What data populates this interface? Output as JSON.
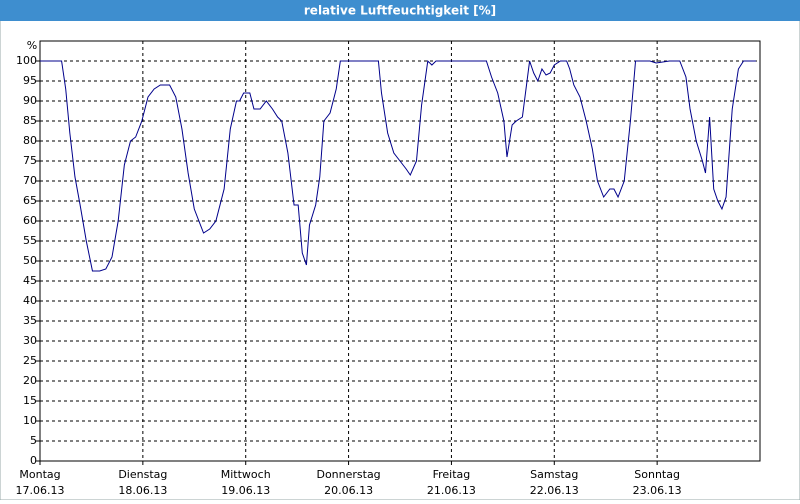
{
  "chart_data": {
    "type": "line",
    "title": "relative Luftfeuchtigkeit [%]",
    "y_label": "%",
    "xlim": [
      0,
      7
    ],
    "ylim": [
      0,
      105
    ],
    "yticks": [
      0,
      5,
      10,
      15,
      20,
      25,
      30,
      35,
      40,
      45,
      50,
      55,
      60,
      65,
      70,
      75,
      80,
      85,
      90,
      95,
      100
    ],
    "xticks": [
      {
        "value": 0,
        "label": "Montag"
      },
      {
        "value": 1,
        "label": "Dienstag"
      },
      {
        "value": 2,
        "label": "Mittwoch"
      },
      {
        "value": 3,
        "label": "Donnerstag"
      },
      {
        "value": 4,
        "label": "Freitag"
      },
      {
        "value": 5,
        "label": "Samstag"
      },
      {
        "value": 6,
        "label": "Sonntag"
      }
    ],
    "x_dates": [
      "17.06.13",
      "18.06.13",
      "19.06.13",
      "20.06.13",
      "21.06.13",
      "22.06.13",
      "23.06.13"
    ],
    "grid": true,
    "series": [
      {
        "color": "#00008b",
        "x": [
          0,
          0.21,
          0.25,
          0.29,
          0.34,
          0.39,
          0.45,
          0.51,
          0.58,
          0.64,
          0.7,
          0.76,
          0.82,
          0.88,
          0.93,
          0.99,
          1.05,
          1.11,
          1.17,
          1.26,
          1.32,
          1.38,
          1.44,
          1.5,
          1.59,
          1.65,
          1.71,
          1.79,
          1.85,
          1.91,
          1.94,
          1.98,
          2.04,
          2.08,
          2.14,
          2.2,
          2.26,
          2.31,
          2.35,
          2.41,
          2.47,
          2.51,
          2.55,
          2.59,
          2.62,
          2.68,
          2.72,
          2.76,
          2.82,
          2.88,
          2.92,
          3.29,
          3.32,
          3.38,
          3.44,
          3.5,
          3.56,
          3.6,
          3.66,
          3.71,
          3.77,
          3.81,
          3.85,
          4.34,
          4.39,
          4.45,
          4.51,
          4.54,
          4.59,
          4.63,
          4.69,
          4.76,
          4.8,
          4.84,
          4.88,
          4.92,
          4.96,
          5.0,
          5.06,
          5.12,
          5.15,
          5.19,
          5.25,
          5.31,
          5.37,
          5.42,
          5.48,
          5.54,
          5.58,
          5.62,
          5.68,
          5.74,
          5.79,
          5.93,
          5.99,
          6.12,
          6.22,
          6.28,
          6.32,
          6.38,
          6.44,
          6.47,
          6.51,
          6.55,
          6.59,
          6.63,
          6.67,
          6.73,
          6.79,
          6.84,
          6.96
        ],
        "values": [
          100,
          100,
          93,
          82,
          71,
          64,
          55,
          47.5,
          47.5,
          48,
          51,
          60,
          74,
          80,
          81,
          85,
          91,
          93,
          94,
          94,
          91,
          83,
          72,
          63,
          57,
          58,
          60,
          68,
          83,
          90,
          90,
          92,
          92,
          88,
          88,
          90,
          88,
          86,
          85,
          77,
          64,
          64,
          52,
          49,
          59,
          64,
          71,
          85,
          87,
          93,
          100,
          100,
          92,
          82,
          77,
          75,
          73,
          71.5,
          75,
          89,
          100,
          99,
          100,
          100,
          96,
          92,
          85,
          76,
          84,
          85,
          86,
          100,
          97,
          95,
          98,
          96.5,
          97,
          99,
          100,
          100,
          98,
          94,
          91,
          85,
          78,
          70,
          66,
          68,
          68,
          66,
          70,
          85,
          100,
          100,
          99.5,
          100,
          100,
          96,
          88,
          80,
          75,
          72,
          86,
          68,
          65,
          63,
          66,
          88,
          98,
          100,
          100
        ]
      }
    ]
  }
}
